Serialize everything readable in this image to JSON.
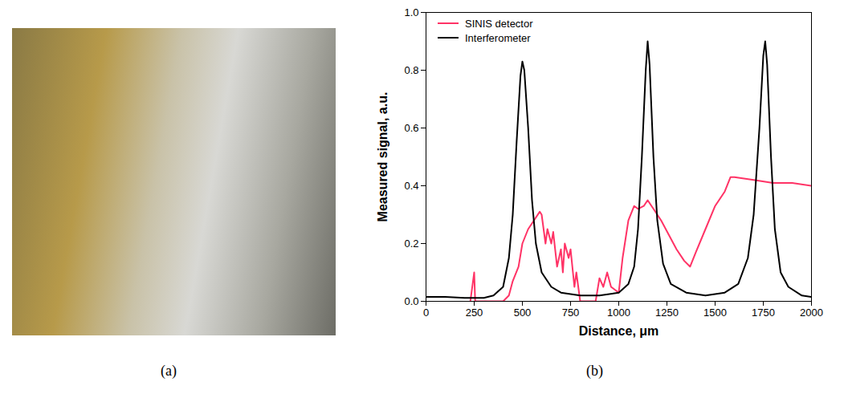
{
  "captions": [
    "(a)",
    "(b)"
  ],
  "chart_data": {
    "type": "line",
    "x_label": "Distance, μm",
    "y_label": "Measured signal, a.u.",
    "xlim": [
      0,
      2000
    ],
    "xticks": [
      0,
      250,
      500,
      750,
      1000,
      1250,
      1500,
      1750,
      2000
    ],
    "ylim": [
      0,
      1.0
    ],
    "yticks": [
      {
        "value": 0,
        "label": "0.0"
      },
      {
        "value": 0.2,
        "label": "0.2"
      },
      {
        "value": 0.4,
        "label": "0.4"
      },
      {
        "value": 0.6,
        "label": "0.6"
      },
      {
        "value": 0.8,
        "label": "0.8"
      },
      {
        "value": 1.0,
        "label": "1.0"
      }
    ],
    "legend": "upper left",
    "grid": false,
    "series": [
      {
        "name": "SINIS detector",
        "color": "#ff3366",
        "x": [
          230,
          250,
          255,
          300,
          400,
          430,
          450,
          480,
          500,
          530,
          560,
          590,
          600,
          620,
          630,
          650,
          660,
          680,
          700,
          710,
          720,
          740,
          750,
          770,
          780,
          800,
          880,
          900,
          920,
          940,
          960,
          1000,
          1020,
          1050,
          1080,
          1100,
          1130,
          1150,
          1180,
          1220,
          1260,
          1300,
          1340,
          1370,
          1400,
          1450,
          1500,
          1550,
          1580,
          1600,
          1700,
          1800,
          1900,
          2000
        ],
        "values": [
          0.0,
          0.1,
          0.0,
          0.0,
          0.0,
          0.02,
          0.07,
          0.12,
          0.2,
          0.25,
          0.28,
          0.31,
          0.3,
          0.2,
          0.25,
          0.2,
          0.24,
          0.12,
          0.18,
          0.1,
          0.2,
          0.15,
          0.18,
          0.05,
          0.1,
          0.0,
          0.0,
          0.08,
          0.05,
          0.1,
          0.05,
          0.03,
          0.15,
          0.28,
          0.33,
          0.32,
          0.33,
          0.35,
          0.32,
          0.28,
          0.23,
          0.18,
          0.14,
          0.12,
          0.17,
          0.25,
          0.33,
          0.38,
          0.43,
          0.43,
          0.42,
          0.41,
          0.41,
          0.4
        ]
      },
      {
        "name": "Interferometer",
        "color": "#000000",
        "x": [
          0,
          100,
          200,
          300,
          350,
          400,
          430,
          450,
          470,
          490,
          500,
          510,
          530,
          550,
          570,
          600,
          650,
          700,
          800,
          900,
          1000,
          1050,
          1080,
          1100,
          1120,
          1140,
          1150,
          1160,
          1180,
          1200,
          1230,
          1270,
          1350,
          1450,
          1550,
          1620,
          1670,
          1700,
          1730,
          1750,
          1760,
          1770,
          1790,
          1810,
          1840,
          1880,
          1950,
          2000
        ],
        "values": [
          0.015,
          0.015,
          0.012,
          0.012,
          0.02,
          0.05,
          0.15,
          0.3,
          0.55,
          0.78,
          0.83,
          0.8,
          0.6,
          0.35,
          0.2,
          0.1,
          0.05,
          0.03,
          0.02,
          0.02,
          0.03,
          0.06,
          0.12,
          0.25,
          0.5,
          0.8,
          0.9,
          0.82,
          0.5,
          0.28,
          0.13,
          0.06,
          0.03,
          0.02,
          0.03,
          0.06,
          0.15,
          0.3,
          0.6,
          0.85,
          0.9,
          0.82,
          0.5,
          0.25,
          0.1,
          0.05,
          0.02,
          0.015
        ]
      }
    ]
  }
}
